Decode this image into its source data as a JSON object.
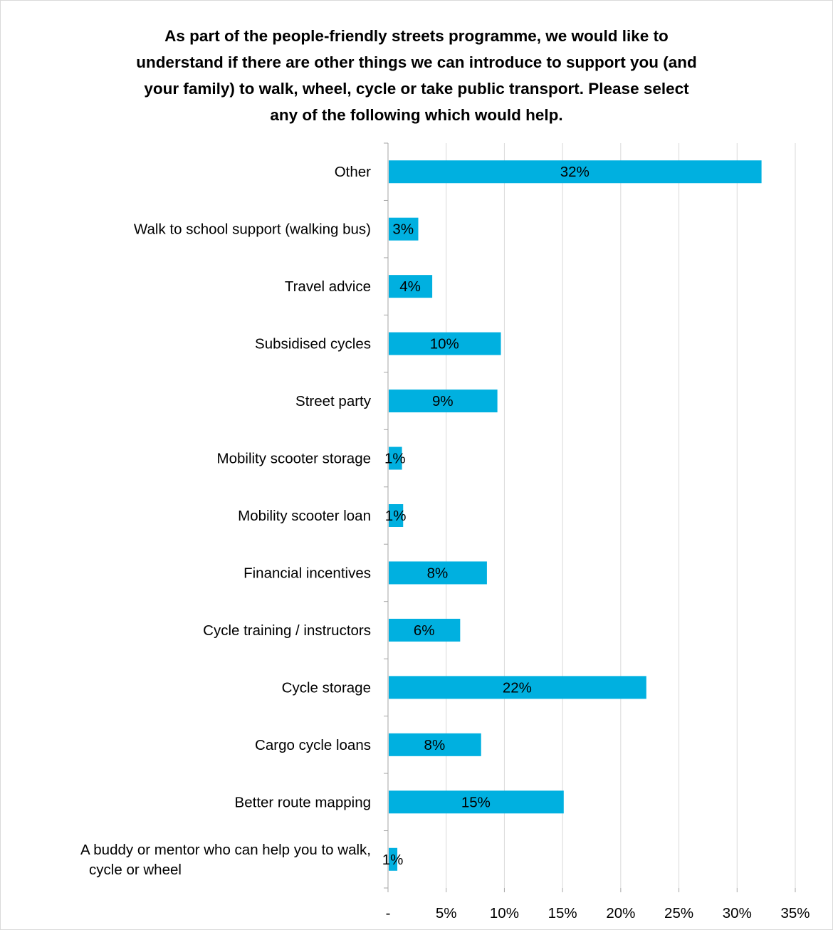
{
  "chart_data": {
    "type": "bar",
    "orientation": "horizontal",
    "title_lines": [
      "As part of the people-friendly streets programme, we would like to",
      "understand if there are other things we can introduce to support you (and",
      "your family) to walk, wheel, cycle or take public transport. Please select",
      "any of the following which would help."
    ],
    "categories": [
      "Other",
      "Walk to school support (walking bus)",
      "Travel advice",
      "Subsidised cycles",
      "Street party",
      "Mobility scooter storage",
      "Mobility scooter loan",
      "Financial incentives",
      "Cycle training / instructors",
      "Cycle storage",
      "Cargo cycle loans",
      "Better route mapping",
      "A buddy or mentor who can help you to walk, cycle or wheel"
    ],
    "category_lines": [
      [
        "Other"
      ],
      [
        "Walk to school support (walking bus)"
      ],
      [
        "Travel advice"
      ],
      [
        "Subsidised cycles"
      ],
      [
        "Street party"
      ],
      [
        "Mobility scooter storage"
      ],
      [
        "Mobility scooter loan"
      ],
      [
        "Financial incentives"
      ],
      [
        "Cycle training / instructors"
      ],
      [
        "Cycle storage"
      ],
      [
        "Cargo cycle loans"
      ],
      [
        "Better route mapping"
      ],
      [
        "A buddy or mentor who can help you to walk,",
        "cycle or wheel"
      ]
    ],
    "values": [
      32.1,
      2.6,
      3.8,
      9.7,
      9.4,
      1.2,
      1.3,
      8.5,
      6.2,
      22.2,
      8.0,
      15.1,
      0.8
    ],
    "data_labels": [
      "32%",
      "3%",
      "4%",
      "10%",
      "9%",
      "1%",
      "1%",
      "8%",
      "6%",
      "22%",
      "8%",
      "15%",
      "1%"
    ],
    "xlim": [
      0,
      35
    ],
    "xticks": [
      0,
      5,
      10,
      15,
      20,
      25,
      30,
      35
    ],
    "xtick_labels": [
      "-",
      "5%",
      "10%",
      "15%",
      "20%",
      "25%",
      "30%",
      "35%"
    ],
    "grid": "vertical",
    "bar_color": "#00B0E0",
    "grid_color": "#d9d9d9",
    "axis_color": "#a6a6a6"
  }
}
